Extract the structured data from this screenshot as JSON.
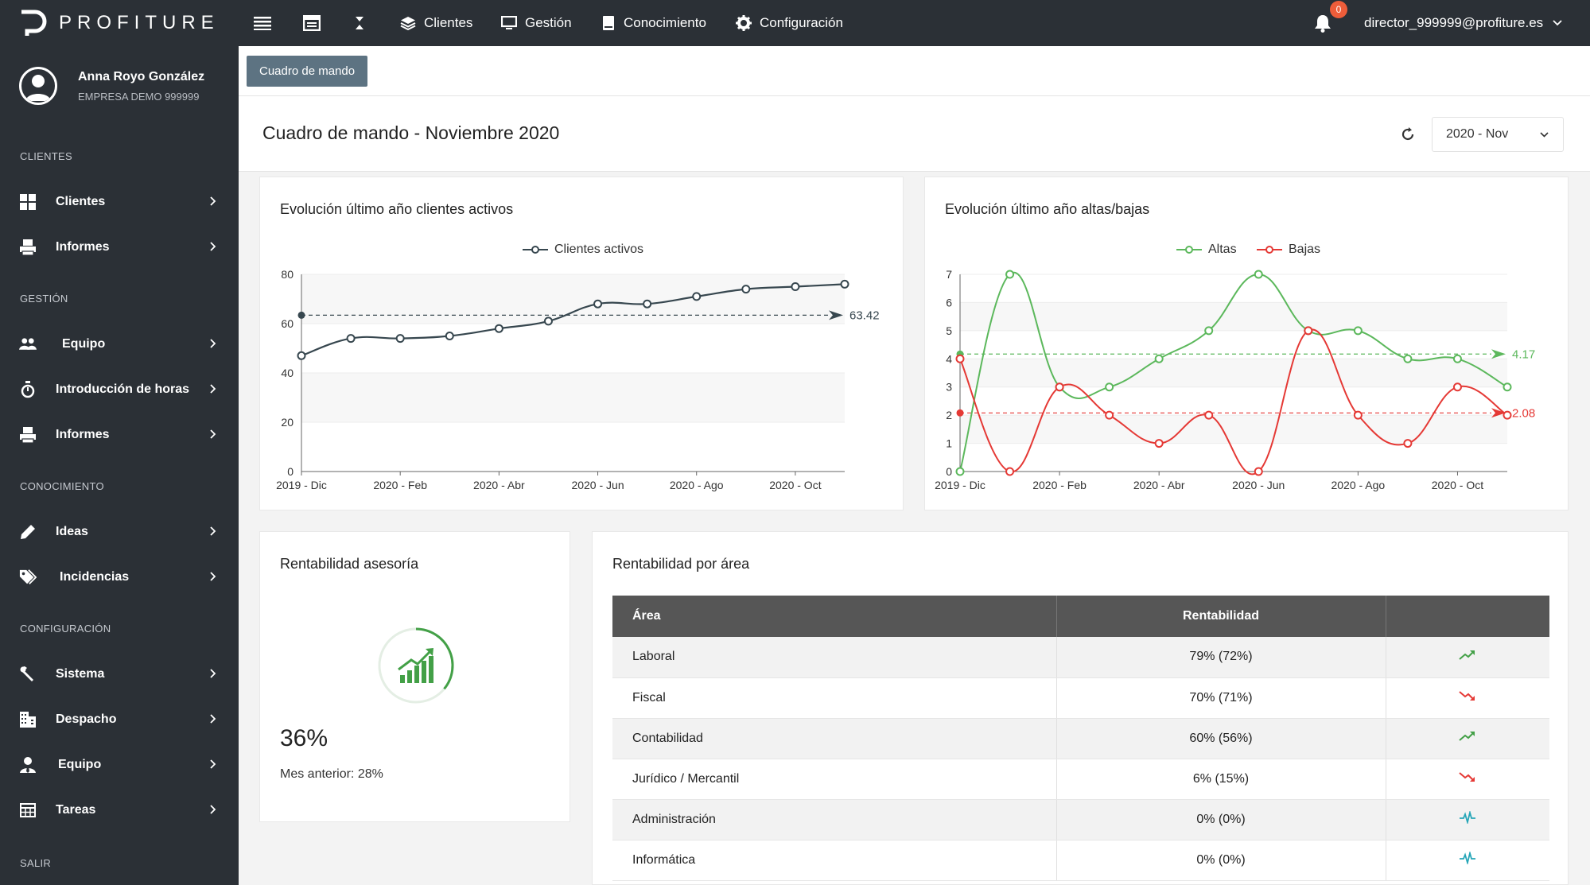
{
  "brand": {
    "name": "PROFITURE"
  },
  "topbar": {
    "nav": [
      {
        "label": "Clientes",
        "icon": "layers-icon"
      },
      {
        "label": "Gestión",
        "icon": "monitor-icon"
      },
      {
        "label": "Conocimiento",
        "icon": "book-icon"
      },
      {
        "label": "Configuración",
        "icon": "gear-icon"
      }
    ],
    "notifications_count": "0",
    "user_email": "director_999999@profiture.es"
  },
  "profile": {
    "name": "Anna Royo González",
    "company": "EMPRESA DEMO 999999"
  },
  "sidebar": {
    "sections": [
      {
        "title": "CLIENTES",
        "items": [
          {
            "label": "Clientes",
            "icon": "grid-icon"
          },
          {
            "label": "Informes",
            "icon": "printer-icon"
          }
        ]
      },
      {
        "title": "GESTIÓN",
        "items": [
          {
            "label": "Equipo",
            "icon": "users-icon"
          },
          {
            "label": "Introducción de horas",
            "icon": "stopwatch-icon"
          },
          {
            "label": "Informes",
            "icon": "printer-icon"
          }
        ]
      },
      {
        "title": "CONOCIMIENTO",
        "items": [
          {
            "label": "Ideas",
            "icon": "pencil-icon"
          },
          {
            "label": "Incidencias",
            "icon": "tags-icon"
          }
        ]
      },
      {
        "title": "CONFIGURACIÓN",
        "items": [
          {
            "label": "Sistema",
            "icon": "wrench-icon"
          },
          {
            "label": "Despacho",
            "icon": "building-icon"
          },
          {
            "label": "Equipo",
            "icon": "user-tie-icon"
          },
          {
            "label": "Tareas",
            "icon": "table-icon"
          }
        ]
      },
      {
        "title": "SALIR",
        "items": []
      }
    ]
  },
  "tabs": {
    "active": "Cuadro de mando"
  },
  "page": {
    "title": "Cuadro de mando  -  Noviembre 2020",
    "period": "2020 - Nov"
  },
  "cards": {
    "clientes": {
      "title": "Evolución último año clientes activos"
    },
    "altas": {
      "title": "Evolución último año altas/bajas"
    },
    "rentabilidad": {
      "title": "Rentabilidad asesoría",
      "value": "36%",
      "previous": "Mes anterior: 28%",
      "progress": 0.36,
      "color": "#43a047"
    },
    "area": {
      "title": "Rentabilidad por área",
      "headers": [
        "Área",
        "Rentabilidad",
        ""
      ],
      "rows": [
        {
          "area": "Laboral",
          "value": "79% (72%)",
          "trend": "trend-up-icon"
        },
        {
          "area": "Fiscal",
          "value": "70% (71%)",
          "trend": "trend-down-icon"
        },
        {
          "area": "Contabilidad",
          "value": "60% (56%)",
          "trend": "trend-up-icon"
        },
        {
          "area": "Jurídico / Mercantil",
          "value": "6% (15%)",
          "trend": "trend-down-icon"
        },
        {
          "area": "Administración",
          "value": "0% (0%)",
          "trend": "pulse-icon"
        },
        {
          "area": "Informática",
          "value": "0% (0%)",
          "trend": "pulse-icon"
        }
      ]
    }
  },
  "chart_data": [
    {
      "type": "line",
      "title": "Evolución último año clientes activos",
      "x": [
        "2019 - Dic",
        "2020 - Ene",
        "2020 - Feb",
        "2020 - Mar",
        "2020 - Abr",
        "2020 - May",
        "2020 - Jun",
        "2020 - Jul",
        "2020 - Ago",
        "2020 - Sep",
        "2020 - Oct",
        "2020 - Nov"
      ],
      "x_ticks": [
        "2019 - Dic",
        "2020 - Feb",
        "2020 - Abr",
        "2020 - Jun",
        "2020 - Ago",
        "2020 - Oct"
      ],
      "series": [
        {
          "name": "Clientes activos",
          "values": [
            47,
            54,
            54,
            55,
            58,
            61,
            68,
            68,
            71,
            74,
            75,
            76
          ],
          "color": "#37474f"
        }
      ],
      "average": {
        "value": 63.42,
        "label": "63.42"
      },
      "ylim": [
        0,
        80
      ],
      "yticks": [
        0,
        20,
        40,
        60,
        80
      ],
      "legend": "top"
    },
    {
      "type": "line",
      "title": "Evolución último año altas/bajas",
      "x": [
        "2019 - Dic",
        "2020 - Ene",
        "2020 - Feb",
        "2020 - Mar",
        "2020 - Abr",
        "2020 - May",
        "2020 - Jun",
        "2020 - Jul",
        "2020 - Ago",
        "2020 - Sep",
        "2020 - Oct",
        "2020 - Nov"
      ],
      "x_ticks": [
        "2019 - Dic",
        "2020 - Feb",
        "2020 - Abr",
        "2020 - Jun",
        "2020 - Ago",
        "2020 - Oct"
      ],
      "series": [
        {
          "name": "Altas",
          "values": [
            0,
            7,
            3,
            3,
            4,
            5,
            7,
            5,
            5,
            4,
            4,
            3
          ],
          "color": "#5cb85c",
          "average": 4.17,
          "average_label": "4.17"
        },
        {
          "name": "Bajas",
          "values": [
            4,
            0,
            3,
            2,
            1,
            2,
            0,
            5,
            2,
            1,
            3,
            2
          ],
          "color": "#e53935",
          "average": 2.08,
          "average_label": "2.08"
        }
      ],
      "ylim": [
        0,
        7
      ],
      "yticks": [
        0,
        1,
        2,
        3,
        4,
        5,
        6,
        7
      ],
      "legend": "top"
    }
  ]
}
